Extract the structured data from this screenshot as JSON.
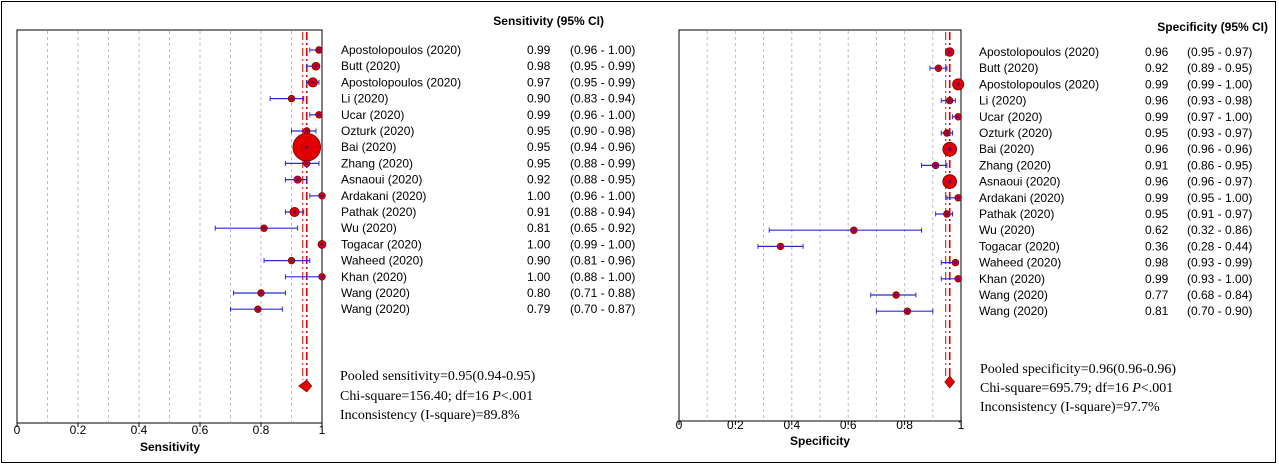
{
  "panels": [
    {
      "id": "sensitivity",
      "column_header": "Sensitivity (95% CI)",
      "pooled_text": "Pooled sensitivity=0.95(0.94-0.95)",
      "chi_text_prefix": "Chi-square=156.40; df=16 ",
      "chi_p": "P",
      "chi_text_suffix": "<.001",
      "inconsistency_text": "Inconsistency (I-square)=89.8%",
      "chart_data": {
        "type": "forest",
        "xlabel": "Sensitivity",
        "xlim": [
          0,
          1
        ],
        "xticks": [
          "0",
          "0.2",
          "0.4",
          "0.6",
          "0.8",
          "1"
        ],
        "pooled": {
          "estimate": 0.95,
          "lower": 0.94,
          "upper": 0.95
        },
        "studies": [
          {
            "name": "Apostolopoulos (2020)",
            "est": 0.99,
            "lo": 0.96,
            "hi": 1.0,
            "est_text": "0.99",
            "ci_text": "(0.96 - 1.00)",
            "weight": 1
          },
          {
            "name": "Butt (2020)",
            "est": 0.98,
            "lo": 0.95,
            "hi": 0.99,
            "est_text": "0.98",
            "ci_text": "(0.95 - 0.99)",
            "weight": 1.2
          },
          {
            "name": "Apostolopoulos (2020)",
            "est": 0.97,
            "lo": 0.95,
            "hi": 0.99,
            "est_text": "0.97",
            "ci_text": "(0.95 - 0.99)",
            "weight": 1.4
          },
          {
            "name": "Li (2020)",
            "est": 0.9,
            "lo": 0.83,
            "hi": 0.94,
            "est_text": "0.90",
            "ci_text": "(0.83 - 0.94)",
            "weight": 1
          },
          {
            "name": "Ucar (2020)",
            "est": 0.99,
            "lo": 0.96,
            "hi": 1.0,
            "est_text": "0.99",
            "ci_text": "(0.96 - 1.00)",
            "weight": 1
          },
          {
            "name": "Ozturk (2020)",
            "est": 0.95,
            "lo": 0.9,
            "hi": 0.98,
            "est_text": "0.95",
            "ci_text": "(0.90 - 0.98)",
            "weight": 1
          },
          {
            "name": "Bai (2020)",
            "est": 0.95,
            "lo": 0.94,
            "hi": 0.96,
            "est_text": "0.95",
            "ci_text": "(0.94 - 0.96)",
            "weight": 4.2
          },
          {
            "name": "Zhang (2020)",
            "est": 0.95,
            "lo": 0.88,
            "hi": 0.99,
            "est_text": "0.95",
            "ci_text": "(0.88 - 0.99)",
            "weight": 1
          },
          {
            "name": "Asnaoui (2020)",
            "est": 0.92,
            "lo": 0.88,
            "hi": 0.95,
            "est_text": "0.92",
            "ci_text": "(0.88 - 0.95)",
            "weight": 1.1
          },
          {
            "name": "Ardakani (2020)",
            "est": 1.0,
            "lo": 0.96,
            "hi": 1.0,
            "est_text": "1.00",
            "ci_text": "(0.96 - 1.00)",
            "weight": 1
          },
          {
            "name": "Pathak (2020)",
            "est": 0.91,
            "lo": 0.88,
            "hi": 0.94,
            "est_text": "0.91",
            "ci_text": "(0.88 - 0.94)",
            "weight": 1.4
          },
          {
            "name": "Wu (2020)",
            "est": 0.81,
            "lo": 0.65,
            "hi": 0.92,
            "est_text": "0.81",
            "ci_text": "(0.65 - 0.92)",
            "weight": 1
          },
          {
            "name": "Togacar (2020)",
            "est": 1.0,
            "lo": 0.99,
            "hi": 1.0,
            "est_text": "1.00",
            "ci_text": "(0.99 - 1.00)",
            "weight": 1.2
          },
          {
            "name": "Waheed (2020)",
            "est": 0.9,
            "lo": 0.81,
            "hi": 0.96,
            "est_text": "0.90",
            "ci_text": "(0.81 - 0.96)",
            "weight": 1
          },
          {
            "name": "Khan (2020)",
            "est": 1.0,
            "lo": 0.88,
            "hi": 1.0,
            "est_text": "1.00",
            "ci_text": "(0.88 - 1.00)",
            "weight": 1
          },
          {
            "name": "Wang (2020)",
            "est": 0.8,
            "lo": 0.71,
            "hi": 0.88,
            "est_text": "0.80",
            "ci_text": "(0.71 - 0.88)",
            "weight": 1
          },
          {
            "name": "Wang (2020)",
            "est": 0.79,
            "lo": 0.7,
            "hi": 0.87,
            "est_text": "0.79",
            "ci_text": "(0.70 - 0.87)",
            "weight": 1
          }
        ]
      }
    },
    {
      "id": "specificity",
      "column_header": "Specificity (95% CI)",
      "pooled_text": "Pooled specificity=0.96(0.96-0.96)",
      "chi_text_prefix": "Chi-square=695.79; df=16 ",
      "chi_p": "P",
      "chi_text_suffix": "<.001",
      "inconsistency_text": "Inconsistency (I-square)=97.7%",
      "chart_data": {
        "type": "forest",
        "xlabel": "Specificity",
        "xlim": [
          0,
          1
        ],
        "xticks": [
          "0",
          "0.2",
          "0.4",
          "0.6",
          "0.8",
          "1"
        ],
        "pooled": {
          "estimate": 0.96,
          "lower": 0.96,
          "upper": 0.96
        },
        "studies": [
          {
            "name": "Apostolopoulos (2020)",
            "est": 0.96,
            "lo": 0.95,
            "hi": 0.97,
            "est_text": "0.96",
            "ci_text": "(0.95 - 0.97)",
            "weight": 1.3
          },
          {
            "name": "Butt (2020)",
            "est": 0.92,
            "lo": 0.89,
            "hi": 0.95,
            "est_text": "0.92",
            "ci_text": "(0.89 - 0.95)",
            "weight": 1
          },
          {
            "name": "Apostolopoulos (2020)",
            "est": 0.99,
            "lo": 0.99,
            "hi": 1.0,
            "est_text": "0.99",
            "ci_text": "(0.99 - 1.00)",
            "weight": 1.7
          },
          {
            "name": "Li (2020)",
            "est": 0.96,
            "lo": 0.93,
            "hi": 0.98,
            "est_text": "0.96",
            "ci_text": "(0.93 - 0.98)",
            "weight": 1
          },
          {
            "name": "Ucar (2020)",
            "est": 0.99,
            "lo": 0.97,
            "hi": 1.0,
            "est_text": "0.99",
            "ci_text": "(0.97 - 1.00)",
            "weight": 1
          },
          {
            "name": "Ozturk (2020)",
            "est": 0.95,
            "lo": 0.93,
            "hi": 0.97,
            "est_text": "0.95",
            "ci_text": "(0.93 - 0.97)",
            "weight": 1
          },
          {
            "name": "Bai (2020)",
            "est": 0.96,
            "lo": 0.96,
            "hi": 0.96,
            "est_text": "0.96",
            "ci_text": "(0.96 - 0.96)",
            "weight": 2.1
          },
          {
            "name": "Zhang (2020)",
            "est": 0.91,
            "lo": 0.86,
            "hi": 0.95,
            "est_text": "0.91",
            "ci_text": "(0.86 - 0.95)",
            "weight": 1
          },
          {
            "name": "Asnaoui (2020)",
            "est": 0.96,
            "lo": 0.96,
            "hi": 0.97,
            "est_text": "0.96",
            "ci_text": "(0.96 - 0.97)",
            "weight": 2.1
          },
          {
            "name": "Ardakani (2020)",
            "est": 0.99,
            "lo": 0.95,
            "hi": 1.0,
            "est_text": "0.99",
            "ci_text": "(0.95 - 1.00)",
            "weight": 1
          },
          {
            "name": "Pathak (2020)",
            "est": 0.95,
            "lo": 0.91,
            "hi": 0.97,
            "est_text": "0.95",
            "ci_text": "(0.91 - 0.97)",
            "weight": 1
          },
          {
            "name": "Wu (2020)",
            "est": 0.62,
            "lo": 0.32,
            "hi": 0.86,
            "est_text": "0.62",
            "ci_text": "(0.32 - 0.86)",
            "weight": 1
          },
          {
            "name": "Togacar (2020)",
            "est": 0.36,
            "lo": 0.28,
            "hi": 0.44,
            "est_text": "0.36",
            "ci_text": "(0.28 - 0.44)",
            "weight": 1
          },
          {
            "name": "Waheed (2020)",
            "est": 0.98,
            "lo": 0.93,
            "hi": 0.99,
            "est_text": "0.98",
            "ci_text": "(0.93 - 0.99)",
            "weight": 1
          },
          {
            "name": "Khan (2020)",
            "est": 0.99,
            "lo": 0.93,
            "hi": 1.0,
            "est_text": "0.99",
            "ci_text": "(0.93 - 1.00)",
            "weight": 1
          },
          {
            "name": "Wang (2020)",
            "est": 0.77,
            "lo": 0.68,
            "hi": 0.84,
            "est_text": "0.77",
            "ci_text": "(0.68 - 0.84)",
            "weight": 1
          },
          {
            "name": "Wang (2020)",
            "est": 0.81,
            "lo": 0.7,
            "hi": 0.9,
            "est_text": "0.81",
            "ci_text": "(0.70 - 0.90)",
            "weight": 1
          }
        ]
      }
    }
  ],
  "colors": {
    "marker_fill": "#e00000",
    "marker_center": "#5a0080",
    "ci_line": "#2b2bd6",
    "pooled_line": "#e00000",
    "grid": "#bdbdbd",
    "text": "#000000"
  }
}
